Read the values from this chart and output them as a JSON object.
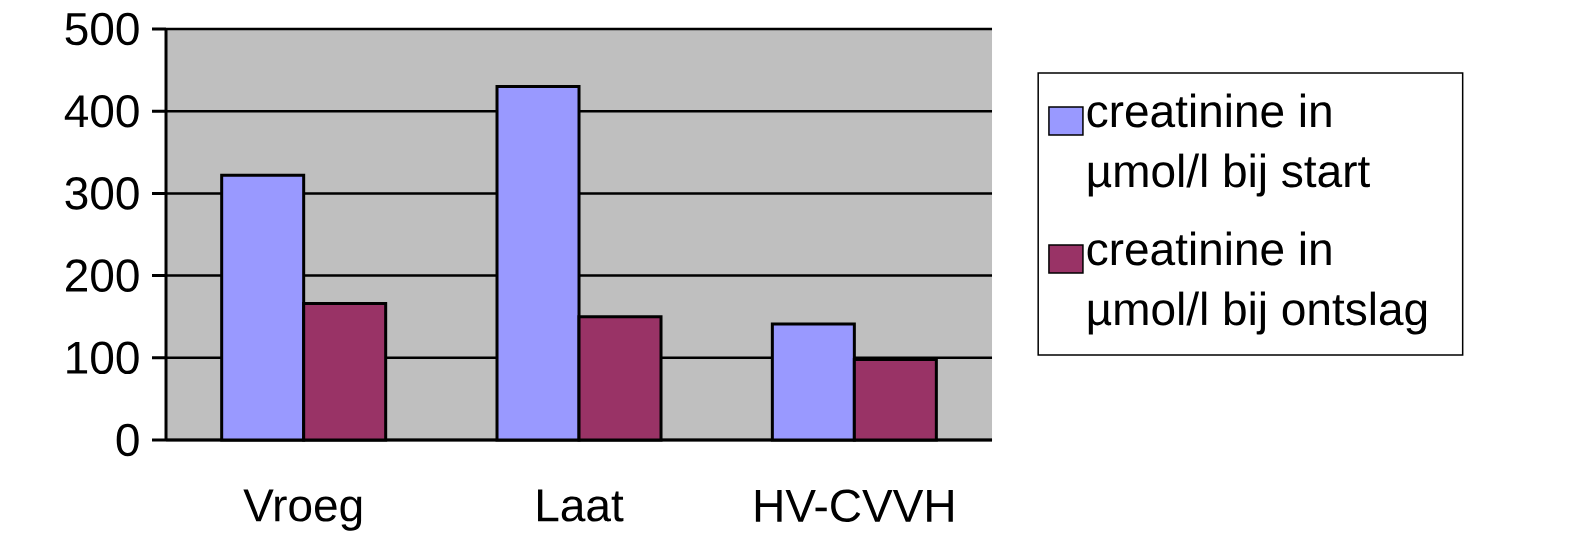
{
  "chart_data": {
    "type": "bar",
    "categories": [
      "Vroeg",
      "Laat",
      "HV-CVVH"
    ],
    "series": [
      {
        "name": "creatinine in µmol/l bij start",
        "color": "#9999ff",
        "values": [
          322,
          430,
          141
        ]
      },
      {
        "name": "creatinine in µmol/l bij ontslag",
        "color": "#993366",
        "values": [
          166,
          150,
          98
        ]
      }
    ],
    "ylim": [
      0,
      500
    ],
    "yticks": [
      0,
      100,
      200,
      300,
      400,
      500
    ],
    "grid": "y",
    "legend": "right"
  }
}
